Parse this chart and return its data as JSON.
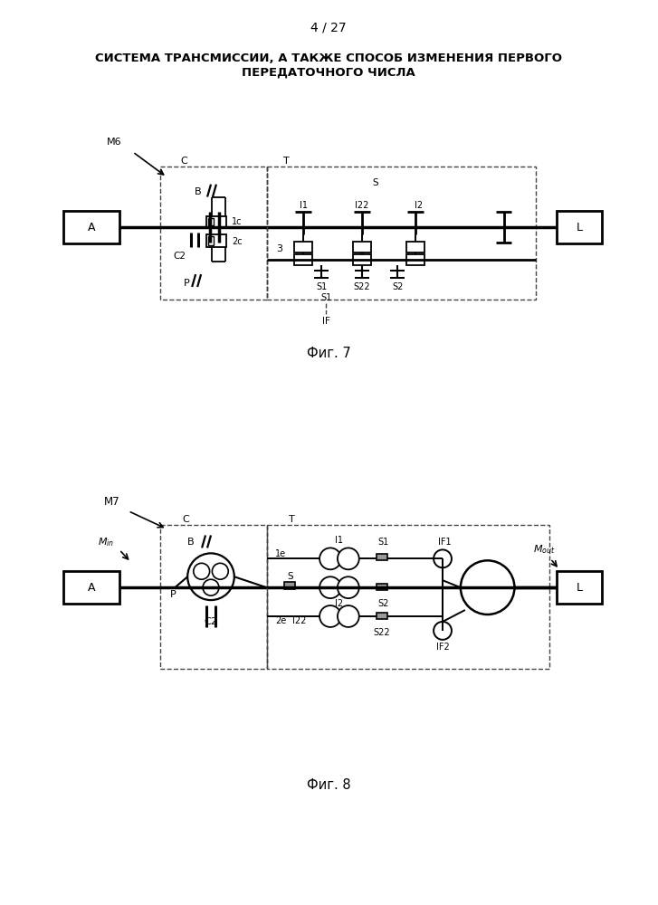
{
  "title_line1": "СИСТЕМА ТРАНСМИССИИ, А ТАКЖЕ СПОСОБ ИЗМЕНЕНИЯ ПЕРВОГО",
  "title_line2": "ПЕРЕДАТОЧНОГО ЧИСЛА",
  "page_num": "4 / 27",
  "fig7_caption": "Фиг. 7",
  "fig8_caption": "Фиг. 8",
  "bg_color": "#ffffff"
}
